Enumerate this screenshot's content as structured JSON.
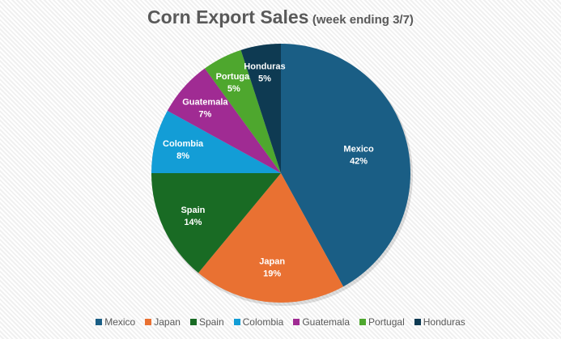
{
  "chart_data": {
    "type": "pie",
    "title": "Corn Export Sales",
    "subtitle": "(week ending 3/7)",
    "categories": [
      "Mexico",
      "Japan",
      "Spain",
      "Colombia",
      "Guatemala",
      "Portugal",
      "Honduras"
    ],
    "values": [
      42,
      19,
      14,
      8,
      7,
      5,
      5
    ],
    "labels": [
      "42%",
      "19%",
      "14%",
      "8%",
      "7%",
      "5%",
      "5%"
    ],
    "colors": [
      "#1a5e85",
      "#e97132",
      "#196b24",
      "#139dd6",
      "#a02b93",
      "#4ea72e",
      "#0e3a52"
    ],
    "legend_position": "bottom",
    "data_labels": "category and percentage"
  }
}
